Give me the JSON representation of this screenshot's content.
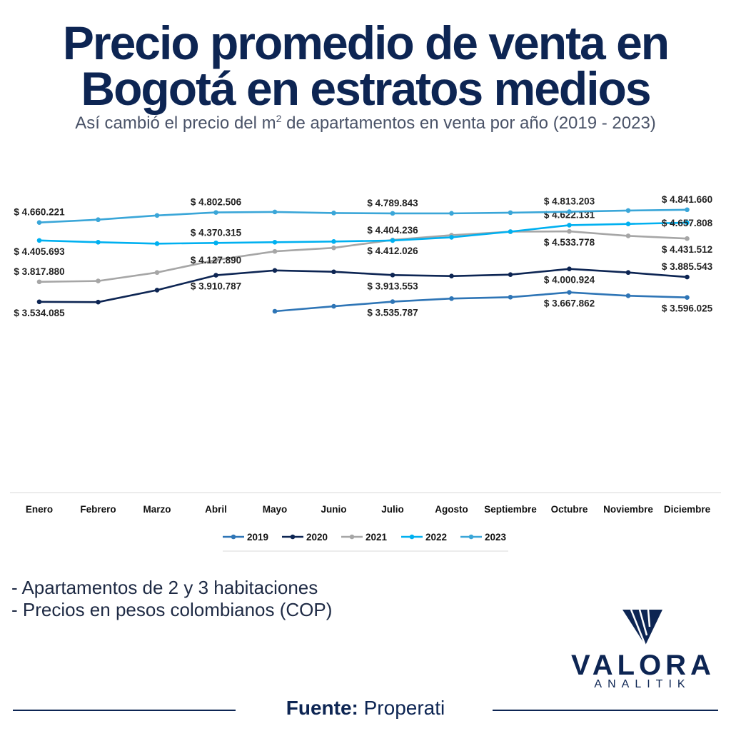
{
  "header": {
    "title_line1": "Precio promedio de venta en",
    "title_line2": "Bogotá en estratos medios",
    "subtitle_before": "Así cambió el precio del m",
    "subtitle_sup": "2",
    "subtitle_after": " de apartamentos en venta por año (2019 - 2023)"
  },
  "chart_data": {
    "type": "line",
    "categories": [
      "Enero",
      "Febrero",
      "Marzo",
      "Abril",
      "Mayo",
      "Junio",
      "Julio",
      "Agosto",
      "Septiembre",
      "Octubre",
      "Noviembre",
      "Diciembre"
    ],
    "ylim": [
      3400000,
      4900000
    ],
    "grid": false,
    "legend": "bottom",
    "series": [
      {
        "name": "2019",
        "color": "#2e75b6",
        "values": [
          null,
          null,
          null,
          null,
          3400000,
          3470000,
          3535787,
          3580000,
          3600000,
          3667862,
          3620000,
          3596025
        ],
        "labels": [
          {
            "index": 6,
            "text": "$ 3.535.787",
            "pos": "below"
          },
          {
            "index": 9,
            "text": "$ 3.667.862",
            "pos": "below"
          },
          {
            "index": 11,
            "text": "$ 3.596.025",
            "pos": "below"
          }
        ]
      },
      {
        "name": "2020",
        "color": "#0d2553",
        "values": [
          3534085,
          3530000,
          3700000,
          3910787,
          3980000,
          3960000,
          3913553,
          3900000,
          3920000,
          4000924,
          3950000,
          3885543
        ],
        "labels": [
          {
            "index": 0,
            "text": "$ 3.534.085",
            "pos": "below"
          },
          {
            "index": 3,
            "text": "$ 3.910.787",
            "pos": "below"
          },
          {
            "index": 6,
            "text": "$ 3.913.553",
            "pos": "below"
          },
          {
            "index": 9,
            "text": "$ 4.000.924",
            "pos": "below"
          },
          {
            "index": 11,
            "text": "$ 3.885.543",
            "pos": "above"
          }
        ]
      },
      {
        "name": "2021",
        "color": "#a6a6a6",
        "values": [
          3817880,
          3830000,
          3950000,
          4127890,
          4250000,
          4300000,
          4412026,
          4480000,
          4530000,
          4533778,
          4470000,
          4431512
        ],
        "labels": [
          {
            "index": 0,
            "text": "$ 3.817.880",
            "pos": "above"
          },
          {
            "index": 3,
            "text": "$ 4.127.890",
            "pos": "center"
          },
          {
            "index": 6,
            "text": "$ 4.412.026",
            "pos": "below"
          },
          {
            "index": 9,
            "text": "$ 4.533.778",
            "pos": "below"
          },
          {
            "index": 11,
            "text": "$ 4.431.512",
            "pos": "below"
          }
        ]
      },
      {
        "name": "2022",
        "color": "#00b0f0",
        "values": [
          4405693,
          4380000,
          4360000,
          4370315,
          4380000,
          4390000,
          4404236,
          4450000,
          4530000,
          4622131,
          4640000,
          4657808
        ],
        "labels": [
          {
            "index": 0,
            "text": "$ 4.405.693",
            "pos": "below"
          },
          {
            "index": 3,
            "text": "$ 4.370.315",
            "pos": "above"
          },
          {
            "index": 6,
            "text": "$ 4.404.236",
            "pos": "above"
          },
          {
            "index": 9,
            "text": "$ 4.622.131",
            "pos": "above"
          },
          {
            "index": 11,
            "text": "$ 4.657.808",
            "pos": "center"
          }
        ]
      },
      {
        "name": "2023",
        "color": "#3aa6d8",
        "values": [
          4660221,
          4700000,
          4760000,
          4802506,
          4810000,
          4795000,
          4789843,
          4790000,
          4800000,
          4813203,
          4830000,
          4841660
        ],
        "labels": [
          {
            "index": 0,
            "text": "$ 4.660.221",
            "pos": "above"
          },
          {
            "index": 3,
            "text": "$ 4.802.506",
            "pos": "above"
          },
          {
            "index": 6,
            "text": "$ 4.789.843",
            "pos": "above"
          },
          {
            "index": 9,
            "text": "$ 4.813.203",
            "pos": "above"
          },
          {
            "index": 11,
            "text": "$ 4.841.660",
            "pos": "above"
          }
        ]
      }
    ]
  },
  "notes": [
    "- Apartamentos de 2 y 3 habitaciones",
    "- Precios en pesos colombianos (COP)"
  ],
  "logo": {
    "name": "VALORA",
    "subname": "ANALITIK"
  },
  "footer": {
    "source_label": "Fuente:",
    "source_value": " Properati"
  }
}
